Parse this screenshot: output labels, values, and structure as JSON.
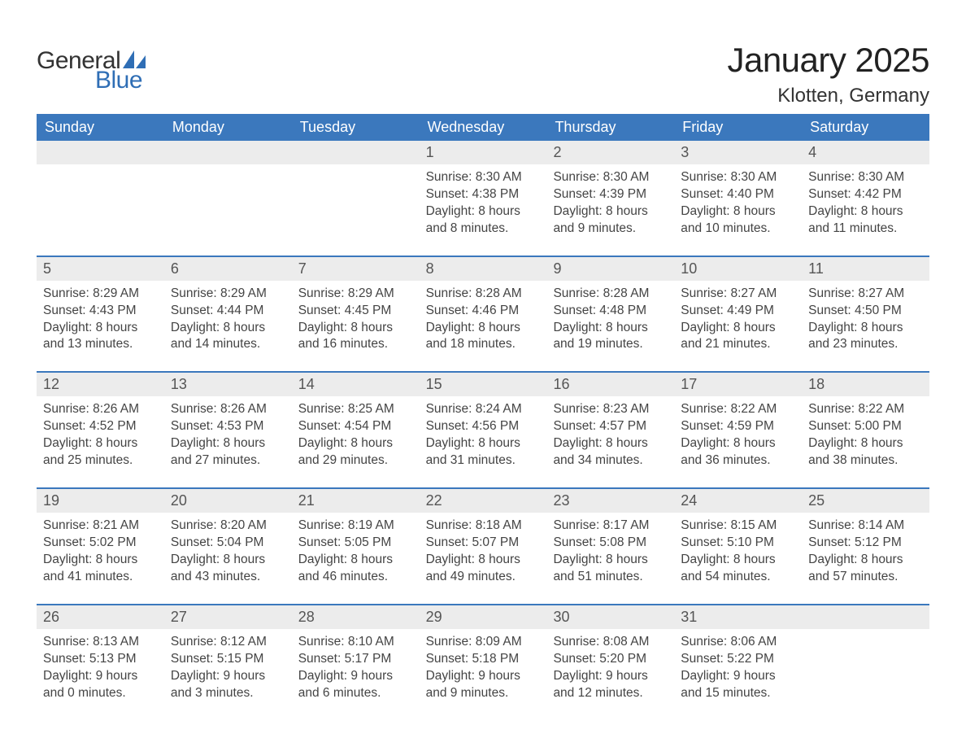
{
  "logo": {
    "general_text": "General",
    "blue_text": "Blue",
    "sail_color": "#2f6eb5"
  },
  "header": {
    "month_title": "January 2025",
    "location": "Klotten, Germany"
  },
  "colors": {
    "header_bg": "#3b78bd",
    "header_text": "#ffffff",
    "daynum_bg": "#ececec",
    "daynum_text": "#555555",
    "body_text": "#444444",
    "rule": "#3b78bd",
    "page_bg": "#ffffff"
  },
  "typography": {
    "month_title_fontsize": 42,
    "location_fontsize": 24,
    "weekday_fontsize": 18,
    "daynum_fontsize": 18,
    "body_fontsize": 15.5
  },
  "calendar": {
    "type": "table",
    "columns": [
      "Sunday",
      "Monday",
      "Tuesday",
      "Wednesday",
      "Thursday",
      "Friday",
      "Saturday"
    ],
    "weeks": [
      [
        {
          "num": "",
          "sunrise": "",
          "sunset": "",
          "daylight1": "",
          "daylight2": ""
        },
        {
          "num": "",
          "sunrise": "",
          "sunset": "",
          "daylight1": "",
          "daylight2": ""
        },
        {
          "num": "",
          "sunrise": "",
          "sunset": "",
          "daylight1": "",
          "daylight2": ""
        },
        {
          "num": "1",
          "sunrise": "Sunrise: 8:30 AM",
          "sunset": "Sunset: 4:38 PM",
          "daylight1": "Daylight: 8 hours",
          "daylight2": "and 8 minutes."
        },
        {
          "num": "2",
          "sunrise": "Sunrise: 8:30 AM",
          "sunset": "Sunset: 4:39 PM",
          "daylight1": "Daylight: 8 hours",
          "daylight2": "and 9 minutes."
        },
        {
          "num": "3",
          "sunrise": "Sunrise: 8:30 AM",
          "sunset": "Sunset: 4:40 PM",
          "daylight1": "Daylight: 8 hours",
          "daylight2": "and 10 minutes."
        },
        {
          "num": "4",
          "sunrise": "Sunrise: 8:30 AM",
          "sunset": "Sunset: 4:42 PM",
          "daylight1": "Daylight: 8 hours",
          "daylight2": "and 11 minutes."
        }
      ],
      [
        {
          "num": "5",
          "sunrise": "Sunrise: 8:29 AM",
          "sunset": "Sunset: 4:43 PM",
          "daylight1": "Daylight: 8 hours",
          "daylight2": "and 13 minutes."
        },
        {
          "num": "6",
          "sunrise": "Sunrise: 8:29 AM",
          "sunset": "Sunset: 4:44 PM",
          "daylight1": "Daylight: 8 hours",
          "daylight2": "and 14 minutes."
        },
        {
          "num": "7",
          "sunrise": "Sunrise: 8:29 AM",
          "sunset": "Sunset: 4:45 PM",
          "daylight1": "Daylight: 8 hours",
          "daylight2": "and 16 minutes."
        },
        {
          "num": "8",
          "sunrise": "Sunrise: 8:28 AM",
          "sunset": "Sunset: 4:46 PM",
          "daylight1": "Daylight: 8 hours",
          "daylight2": "and 18 minutes."
        },
        {
          "num": "9",
          "sunrise": "Sunrise: 8:28 AM",
          "sunset": "Sunset: 4:48 PM",
          "daylight1": "Daylight: 8 hours",
          "daylight2": "and 19 minutes."
        },
        {
          "num": "10",
          "sunrise": "Sunrise: 8:27 AM",
          "sunset": "Sunset: 4:49 PM",
          "daylight1": "Daylight: 8 hours",
          "daylight2": "and 21 minutes."
        },
        {
          "num": "11",
          "sunrise": "Sunrise: 8:27 AM",
          "sunset": "Sunset: 4:50 PM",
          "daylight1": "Daylight: 8 hours",
          "daylight2": "and 23 minutes."
        }
      ],
      [
        {
          "num": "12",
          "sunrise": "Sunrise: 8:26 AM",
          "sunset": "Sunset: 4:52 PM",
          "daylight1": "Daylight: 8 hours",
          "daylight2": "and 25 minutes."
        },
        {
          "num": "13",
          "sunrise": "Sunrise: 8:26 AM",
          "sunset": "Sunset: 4:53 PM",
          "daylight1": "Daylight: 8 hours",
          "daylight2": "and 27 minutes."
        },
        {
          "num": "14",
          "sunrise": "Sunrise: 8:25 AM",
          "sunset": "Sunset: 4:54 PM",
          "daylight1": "Daylight: 8 hours",
          "daylight2": "and 29 minutes."
        },
        {
          "num": "15",
          "sunrise": "Sunrise: 8:24 AM",
          "sunset": "Sunset: 4:56 PM",
          "daylight1": "Daylight: 8 hours",
          "daylight2": "and 31 minutes."
        },
        {
          "num": "16",
          "sunrise": "Sunrise: 8:23 AM",
          "sunset": "Sunset: 4:57 PM",
          "daylight1": "Daylight: 8 hours",
          "daylight2": "and 34 minutes."
        },
        {
          "num": "17",
          "sunrise": "Sunrise: 8:22 AM",
          "sunset": "Sunset: 4:59 PM",
          "daylight1": "Daylight: 8 hours",
          "daylight2": "and 36 minutes."
        },
        {
          "num": "18",
          "sunrise": "Sunrise: 8:22 AM",
          "sunset": "Sunset: 5:00 PM",
          "daylight1": "Daylight: 8 hours",
          "daylight2": "and 38 minutes."
        }
      ],
      [
        {
          "num": "19",
          "sunrise": "Sunrise: 8:21 AM",
          "sunset": "Sunset: 5:02 PM",
          "daylight1": "Daylight: 8 hours",
          "daylight2": "and 41 minutes."
        },
        {
          "num": "20",
          "sunrise": "Sunrise: 8:20 AM",
          "sunset": "Sunset: 5:04 PM",
          "daylight1": "Daylight: 8 hours",
          "daylight2": "and 43 minutes."
        },
        {
          "num": "21",
          "sunrise": "Sunrise: 8:19 AM",
          "sunset": "Sunset: 5:05 PM",
          "daylight1": "Daylight: 8 hours",
          "daylight2": "and 46 minutes."
        },
        {
          "num": "22",
          "sunrise": "Sunrise: 8:18 AM",
          "sunset": "Sunset: 5:07 PM",
          "daylight1": "Daylight: 8 hours",
          "daylight2": "and 49 minutes."
        },
        {
          "num": "23",
          "sunrise": "Sunrise: 8:17 AM",
          "sunset": "Sunset: 5:08 PM",
          "daylight1": "Daylight: 8 hours",
          "daylight2": "and 51 minutes."
        },
        {
          "num": "24",
          "sunrise": "Sunrise: 8:15 AM",
          "sunset": "Sunset: 5:10 PM",
          "daylight1": "Daylight: 8 hours",
          "daylight2": "and 54 minutes."
        },
        {
          "num": "25",
          "sunrise": "Sunrise: 8:14 AM",
          "sunset": "Sunset: 5:12 PM",
          "daylight1": "Daylight: 8 hours",
          "daylight2": "and 57 minutes."
        }
      ],
      [
        {
          "num": "26",
          "sunrise": "Sunrise: 8:13 AM",
          "sunset": "Sunset: 5:13 PM",
          "daylight1": "Daylight: 9 hours",
          "daylight2": "and 0 minutes."
        },
        {
          "num": "27",
          "sunrise": "Sunrise: 8:12 AM",
          "sunset": "Sunset: 5:15 PM",
          "daylight1": "Daylight: 9 hours",
          "daylight2": "and 3 minutes."
        },
        {
          "num": "28",
          "sunrise": "Sunrise: 8:10 AM",
          "sunset": "Sunset: 5:17 PM",
          "daylight1": "Daylight: 9 hours",
          "daylight2": "and 6 minutes."
        },
        {
          "num": "29",
          "sunrise": "Sunrise: 8:09 AM",
          "sunset": "Sunset: 5:18 PM",
          "daylight1": "Daylight: 9 hours",
          "daylight2": "and 9 minutes."
        },
        {
          "num": "30",
          "sunrise": "Sunrise: 8:08 AM",
          "sunset": "Sunset: 5:20 PM",
          "daylight1": "Daylight: 9 hours",
          "daylight2": "and 12 minutes."
        },
        {
          "num": "31",
          "sunrise": "Sunrise: 8:06 AM",
          "sunset": "Sunset: 5:22 PM",
          "daylight1": "Daylight: 9 hours",
          "daylight2": "and 15 minutes."
        },
        {
          "num": "",
          "sunrise": "",
          "sunset": "",
          "daylight1": "",
          "daylight2": ""
        }
      ]
    ]
  }
}
